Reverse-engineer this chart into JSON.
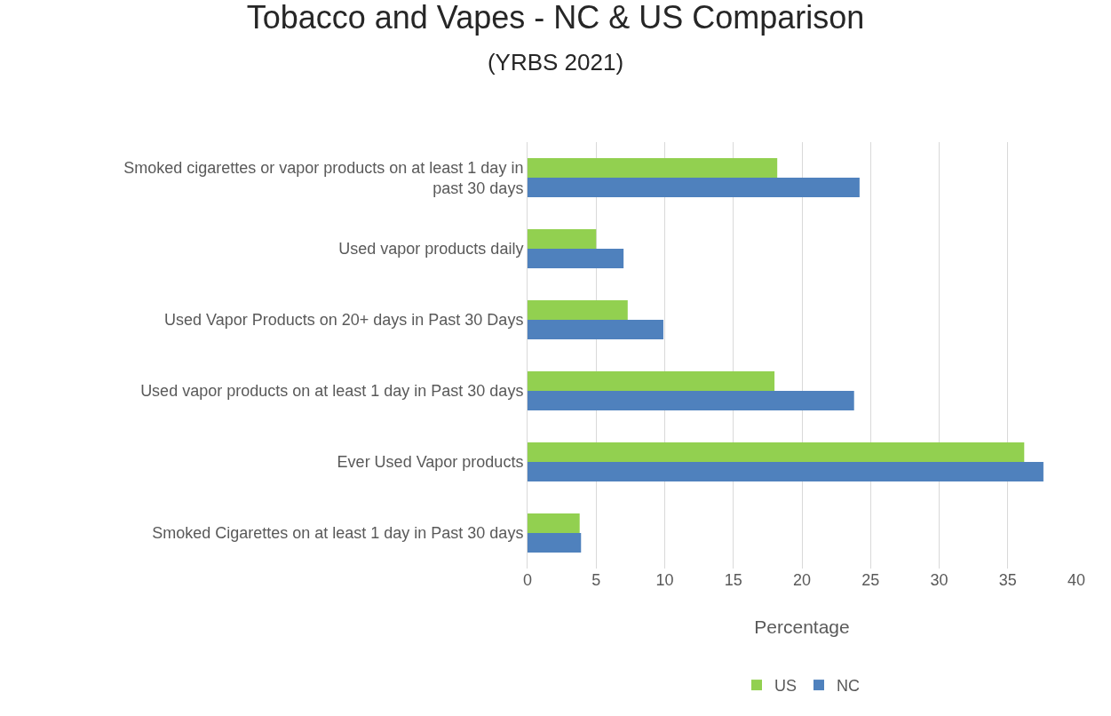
{
  "chart_data": {
    "type": "bar",
    "orientation": "horizontal",
    "title": "Tobacco and Vapes - NC & US Comparison",
    "subtitle": "(YRBS 2021)",
    "xlabel": "Percentage",
    "categories": [
      "Smoked cigarettes or vapor products on at least 1 day in past 30 days",
      "Used vapor products daily",
      "Used Vapor Products on 20+ days in Past 30 Days",
      "Used vapor products on at least 1 day in Past 30 days",
      "Ever Used Vapor products",
      "Smoked Cigarettes on at least 1 day in Past 30 days"
    ],
    "series": [
      {
        "name": "US",
        "color": "#92d050",
        "values": [
          18.2,
          5.0,
          7.3,
          18.0,
          36.2,
          3.8
        ]
      },
      {
        "name": "NC",
        "color": "#4f81bd",
        "values": [
          24.2,
          7.0,
          9.9,
          23.8,
          37.6,
          3.9
        ]
      }
    ],
    "xlim": [
      0,
      40
    ],
    "xticks": [
      0,
      5,
      10,
      15,
      20,
      25,
      30,
      35,
      40
    ],
    "grid": "x",
    "legend": "bottom"
  }
}
